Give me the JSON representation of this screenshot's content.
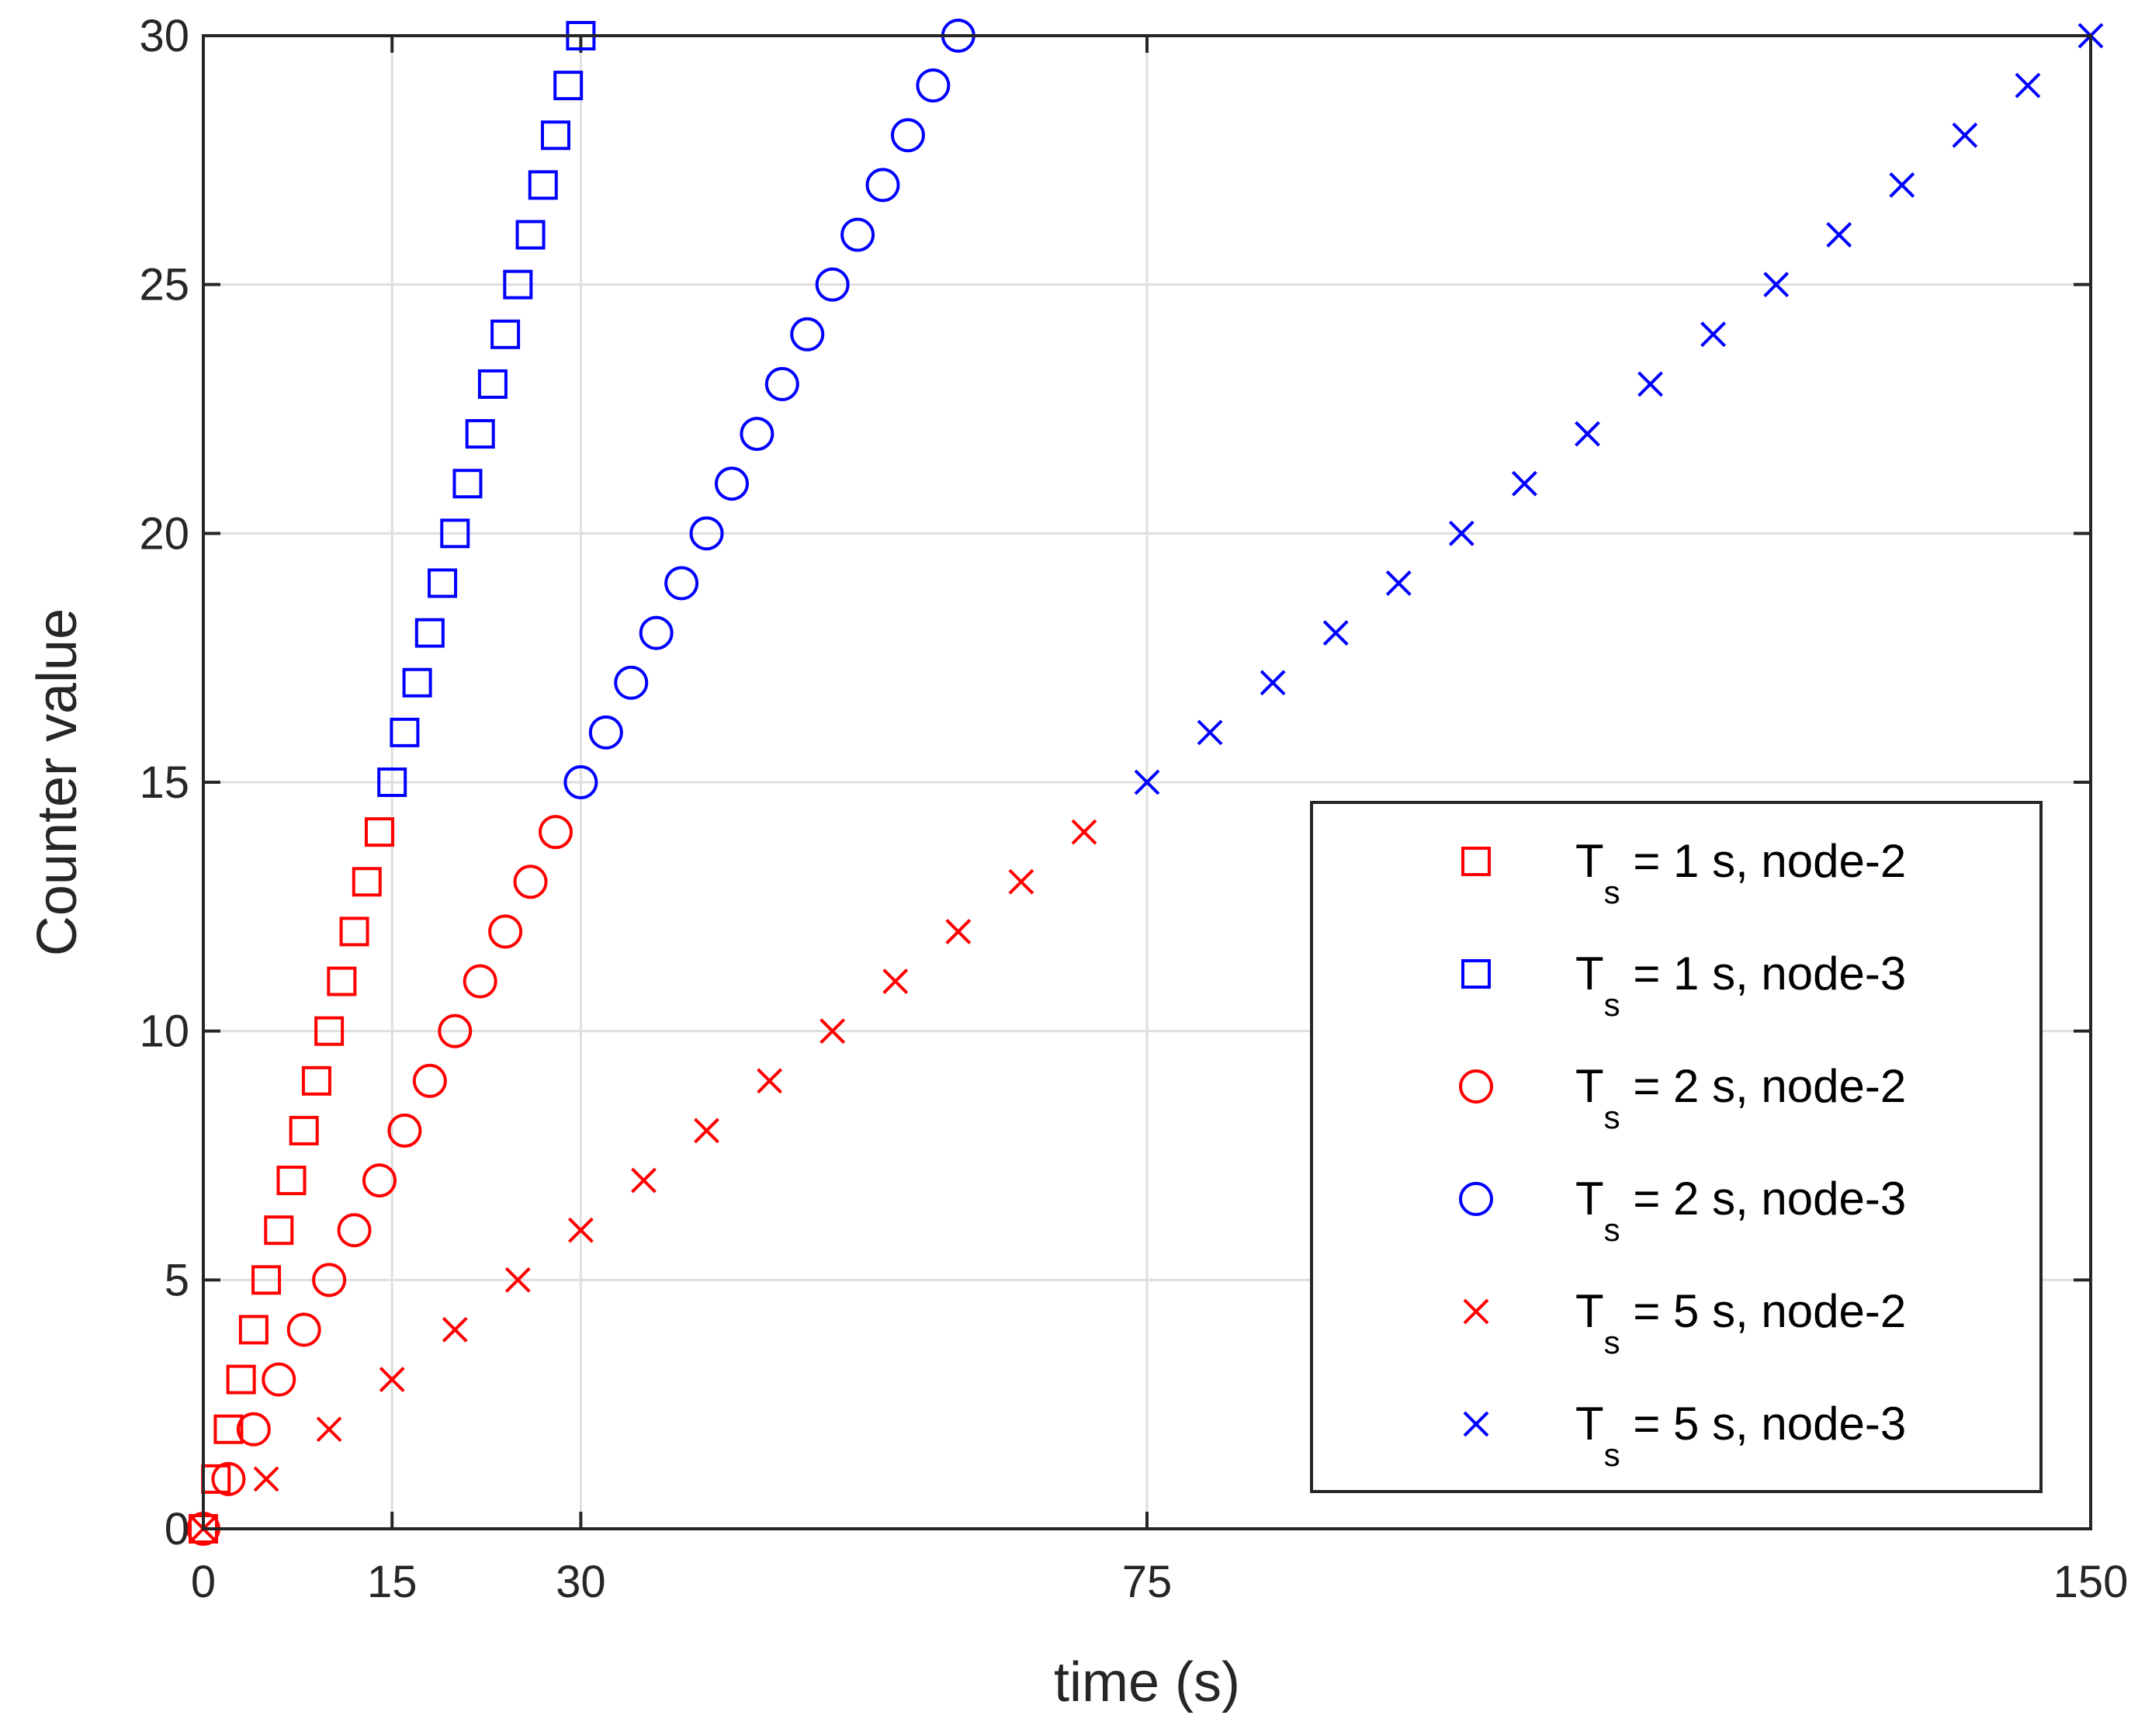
{
  "chart_data": {
    "type": "scatter",
    "title": "",
    "xlabel": "time (s)",
    "ylabel": "Counter value",
    "xlim": [
      0,
      150
    ],
    "ylim": [
      0,
      30
    ],
    "xticks": [
      0,
      15,
      30,
      75,
      150
    ],
    "yticks": [
      0,
      5,
      10,
      15,
      20,
      25,
      30
    ],
    "grid": true,
    "legend_position": "bottom-right",
    "series": [
      {
        "name": "T_s = 1 s, node-2",
        "label_main": "T",
        "label_sub": "s",
        "label_rest": " = 1 s, node-2",
        "color": "#ff0000",
        "marker": "square",
        "x": [
          0,
          1,
          2,
          3,
          4,
          5,
          6,
          7,
          8,
          9,
          10,
          11,
          12,
          13,
          14
        ],
        "y": [
          0,
          1,
          2,
          3,
          4,
          5,
          6,
          7,
          8,
          9,
          10,
          11,
          12,
          13,
          14
        ]
      },
      {
        "name": "T_s = 1 s, node-3",
        "label_main": "T",
        "label_sub": "s",
        "label_rest": " = 1 s, node-3",
        "color": "#0000ff",
        "marker": "square",
        "x": [
          15,
          16,
          17,
          18,
          19,
          20,
          21,
          22,
          23,
          24,
          25,
          26,
          27,
          28,
          29,
          30
        ],
        "y": [
          15,
          16,
          17,
          18,
          19,
          20,
          21,
          22,
          23,
          24,
          25,
          26,
          27,
          28,
          29,
          30
        ]
      },
      {
        "name": "T_s = 2 s, node-2",
        "label_main": "T",
        "label_sub": "s",
        "label_rest": " = 2 s, node-2",
        "color": "#ff0000",
        "marker": "circle",
        "x": [
          0,
          2,
          4,
          6,
          8,
          10,
          12,
          14,
          16,
          18,
          20,
          22,
          24,
          26,
          28
        ],
        "y": [
          0,
          1,
          2,
          3,
          4,
          5,
          6,
          7,
          8,
          9,
          10,
          11,
          12,
          13,
          14
        ]
      },
      {
        "name": "T_s = 2 s, node-3",
        "label_main": "T",
        "label_sub": "s",
        "label_rest": " = 2 s, node-3",
        "color": "#0000ff",
        "marker": "circle",
        "x": [
          30,
          32,
          34,
          36,
          38,
          40,
          42,
          44,
          46,
          48,
          50,
          52,
          54,
          56,
          58,
          60
        ],
        "y": [
          15,
          16,
          17,
          18,
          19,
          20,
          21,
          22,
          23,
          24,
          25,
          26,
          27,
          28,
          29,
          30
        ]
      },
      {
        "name": "T_s = 5 s, node-2",
        "label_main": "T",
        "label_sub": "s",
        "label_rest": " = 5 s, node-2",
        "color": "#ff0000",
        "marker": "x",
        "x": [
          0,
          5,
          10,
          15,
          20,
          25,
          30,
          35,
          40,
          45,
          50,
          55,
          60,
          65,
          70
        ],
        "y": [
          0,
          1,
          2,
          3,
          4,
          5,
          6,
          7,
          8,
          9,
          10,
          11,
          12,
          13,
          14
        ]
      },
      {
        "name": "T_s = 5 s, node-3",
        "label_main": "T",
        "label_sub": "s",
        "label_rest": " = 5 s, node-3",
        "color": "#0000ff",
        "marker": "x",
        "x": [
          75,
          80,
          85,
          90,
          95,
          100,
          105,
          110,
          115,
          120,
          125,
          130,
          135,
          140,
          145,
          150
        ],
        "y": [
          15,
          16,
          17,
          18,
          19,
          20,
          21,
          22,
          23,
          24,
          25,
          26,
          27,
          28,
          29,
          30
        ]
      }
    ]
  }
}
